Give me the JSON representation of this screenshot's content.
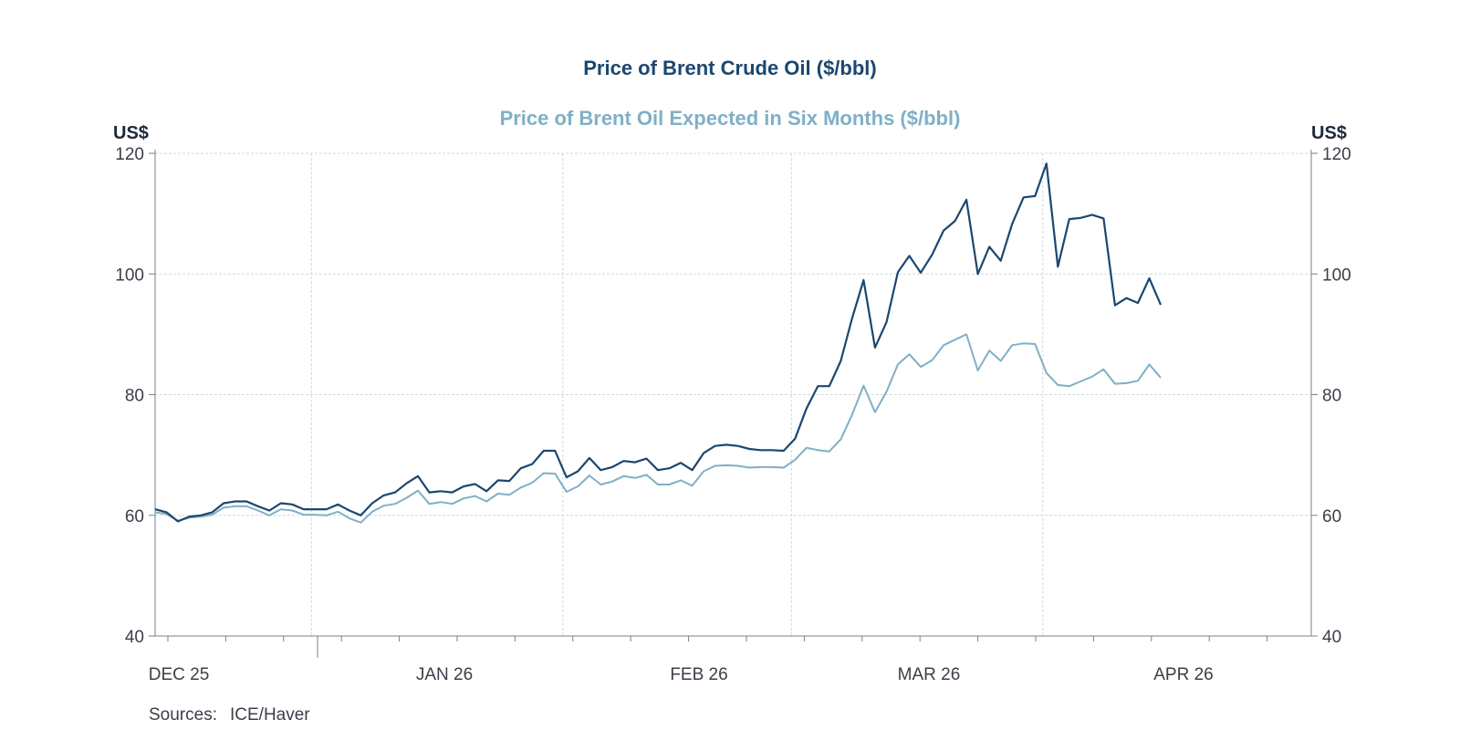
{
  "chart_data": {
    "type": "line",
    "title": "Price of Brent Crude Oil ($/bbl)",
    "subtitle": "Price of Brent Oil Expected in Six Months ($/bbl)",
    "y_left_label": "US$",
    "y_right_label": "US$",
    "ylim": [
      40,
      120
    ],
    "y_ticks": [
      40,
      60,
      80,
      100,
      120
    ],
    "x_tick_labels": [
      "DEC 25",
      "JAN 26",
      "FEB 26",
      "MAR 26",
      "APR 26"
    ],
    "grid": true,
    "colors": {
      "spot": "#1b4770",
      "expected": "#7fb0c6"
    },
    "series": [
      {
        "key": "spot",
        "values": [
          61.0,
          60.5,
          59.0,
          59.8,
          60.0,
          60.5,
          62.0,
          62.3,
          62.3,
          61.5,
          60.8,
          62.0,
          61.8,
          61.0,
          61.0,
          61.0,
          61.8,
          60.8,
          60.0,
          62.0,
          63.3,
          63.8,
          65.3,
          66.5,
          63.8,
          64.0,
          63.8,
          64.8,
          65.2,
          64.0,
          65.8,
          65.7,
          67.8,
          68.5,
          70.7,
          70.7,
          66.3,
          67.3,
          69.5,
          67.5,
          68.0,
          69.0,
          68.8,
          69.4,
          67.5,
          67.8,
          68.7,
          67.5,
          70.3,
          71.5,
          71.7,
          71.5,
          71.0,
          70.8,
          70.8,
          70.7,
          72.7,
          77.7,
          81.4,
          81.4,
          85.6,
          92.7,
          99.0,
          87.8,
          92.0,
          100.3,
          103.0,
          100.2,
          103.2,
          107.2,
          108.8,
          112.3,
          100.0,
          104.5,
          102.2,
          108.3,
          112.7,
          112.9,
          118.3,
          101.2,
          109.1,
          109.3,
          109.8,
          109.2,
          94.8,
          96.0,
          95.2,
          99.3,
          94.9
        ]
      },
      {
        "key": "expected",
        "values": [
          60.5,
          60.2,
          59.1,
          59.6,
          59.8,
          60.1,
          61.3,
          61.5,
          61.5,
          60.8,
          60.0,
          61.0,
          60.8,
          60.1,
          60.1,
          60.0,
          60.6,
          59.5,
          58.8,
          60.6,
          61.6,
          61.9,
          62.9,
          64.1,
          61.9,
          62.2,
          61.9,
          62.8,
          63.2,
          62.3,
          63.6,
          63.4,
          64.6,
          65.4,
          67.0,
          66.9,
          63.9,
          64.8,
          66.6,
          65.1,
          65.6,
          66.5,
          66.2,
          66.7,
          65.1,
          65.1,
          65.8,
          64.9,
          67.3,
          68.2,
          68.3,
          68.2,
          67.9,
          68.0,
          68.0,
          67.9,
          69.2,
          71.2,
          70.8,
          70.6,
          72.6,
          76.7,
          81.5,
          77.1,
          80.5,
          85.0,
          86.7,
          84.6,
          85.7,
          88.2,
          89.1,
          90.0,
          84.0,
          87.3,
          85.6,
          88.2,
          88.5,
          88.4,
          83.6,
          81.6,
          81.4,
          82.2,
          83.0,
          84.2,
          81.8,
          81.9,
          82.3,
          85.0,
          82.8
        ]
      }
    ]
  },
  "source_label": "Sources:",
  "source_text": "ICE/Haver"
}
